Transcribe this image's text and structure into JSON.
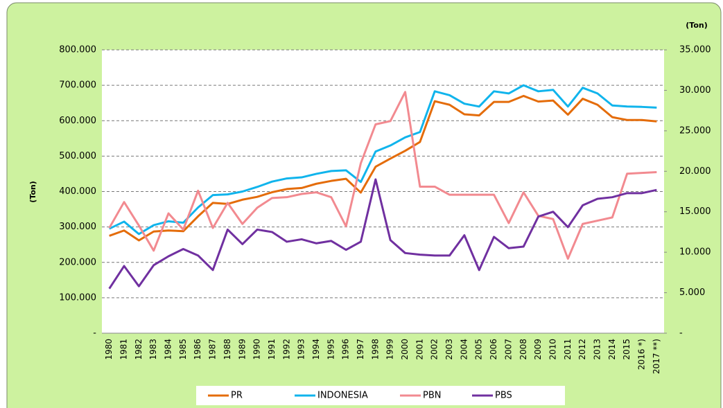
{
  "chart_data": {
    "type": "line",
    "y_label": "(Ton)",
    "y2_label": "(Ton)",
    "categories": [
      "1980",
      "1981",
      "1982",
      "1983",
      "1984",
      "1985",
      "1986",
      "1987",
      "1988",
      "1989",
      "1990",
      "1991",
      "1992",
      "1993",
      "1994",
      "1995",
      "1996",
      "1997",
      "1998",
      "1999",
      "2000",
      "2001",
      "2002",
      "2003",
      "2004",
      "2005",
      "2006",
      "2007",
      "2008",
      "2009",
      "2010",
      "2011",
      "2012",
      "2013",
      "2014",
      "2015",
      "2016 *)",
      "2017 **)"
    ],
    "series": [
      {
        "name": "PR",
        "color": "#e46c0a",
        "axis": "y",
        "values": [
          275000,
          290000,
          262000,
          287000,
          290000,
          288000,
          330000,
          368000,
          365000,
          377000,
          385000,
          398000,
          407000,
          410000,
          422000,
          430000,
          436000,
          397000,
          470000,
          493000,
          515000,
          540000,
          655000,
          645000,
          618000,
          615000,
          653000,
          653000,
          670000,
          654000,
          657000,
          617000,
          662000,
          645000,
          610000,
          602000,
          602000,
          598000
        ]
      },
      {
        "name": "INDONESIA",
        "color": "#10b4ec",
        "axis": "y",
        "values": [
          295000,
          315000,
          280000,
          305000,
          316000,
          312000,
          355000,
          390000,
          392000,
          400000,
          413000,
          428000,
          437000,
          440000,
          450000,
          458000,
          460000,
          427000,
          513000,
          530000,
          553000,
          568000,
          683000,
          672000,
          648000,
          640000,
          683000,
          677000,
          700000,
          683000,
          687000,
          640000,
          693000,
          677000,
          643000,
          640000,
          639000,
          637000
        ]
      },
      {
        "name": "PBN",
        "color": "#f28a90",
        "axis": "y2",
        "values": [
          13000,
          16200,
          13300,
          10200,
          14800,
          12800,
          17600,
          13000,
          16100,
          13500,
          15500,
          16700,
          16800,
          17200,
          17400,
          16800,
          13200,
          21000,
          25800,
          26200,
          29800,
          18100,
          18100,
          17100,
          17100,
          17100,
          17100,
          13600,
          17400,
          14500,
          14100,
          9200,
          13500,
          13900,
          14300,
          19700,
          19800,
          19900
        ]
      },
      {
        "name": "PBS",
        "color": "#7030a0",
        "axis": "y2",
        "values": [
          5500,
          8300,
          5800,
          8400,
          9500,
          10400,
          9600,
          7800,
          12800,
          11000,
          12800,
          12500,
          11300,
          11600,
          11100,
          11400,
          10300,
          11300,
          19000,
          11500,
          9900,
          9700,
          9600,
          9600,
          12100,
          7800,
          11900,
          10500,
          10700,
          14400,
          15000,
          13100,
          15800,
          16600,
          16800,
          17300,
          17300,
          17700
        ]
      }
    ],
    "ylim": [
      0,
      800000
    ],
    "yticks": [
      {
        "value": 0,
        "label": "-"
      },
      {
        "value": 100000,
        "label": "100.000"
      },
      {
        "value": 200000,
        "label": "200.000"
      },
      {
        "value": 300000,
        "label": "300.000"
      },
      {
        "value": 400000,
        "label": "400.000"
      },
      {
        "value": 500000,
        "label": "500.000"
      },
      {
        "value": 600000,
        "label": "600.000"
      },
      {
        "value": 700000,
        "label": "700.000"
      },
      {
        "value": 800000,
        "label": "800.000"
      }
    ],
    "y2lim": [
      0,
      35000
    ],
    "y2ticks": [
      {
        "value": 0,
        "label": "-"
      },
      {
        "value": 5000,
        "label": "5.000"
      },
      {
        "value": 10000,
        "label": "10.000"
      },
      {
        "value": 15000,
        "label": "15.000"
      },
      {
        "value": 20000,
        "label": "20.000"
      },
      {
        "value": 25000,
        "label": "25.000"
      },
      {
        "value": 30000,
        "label": "30.000"
      },
      {
        "value": 35000,
        "label": "35.000"
      }
    ],
    "grid": true
  }
}
